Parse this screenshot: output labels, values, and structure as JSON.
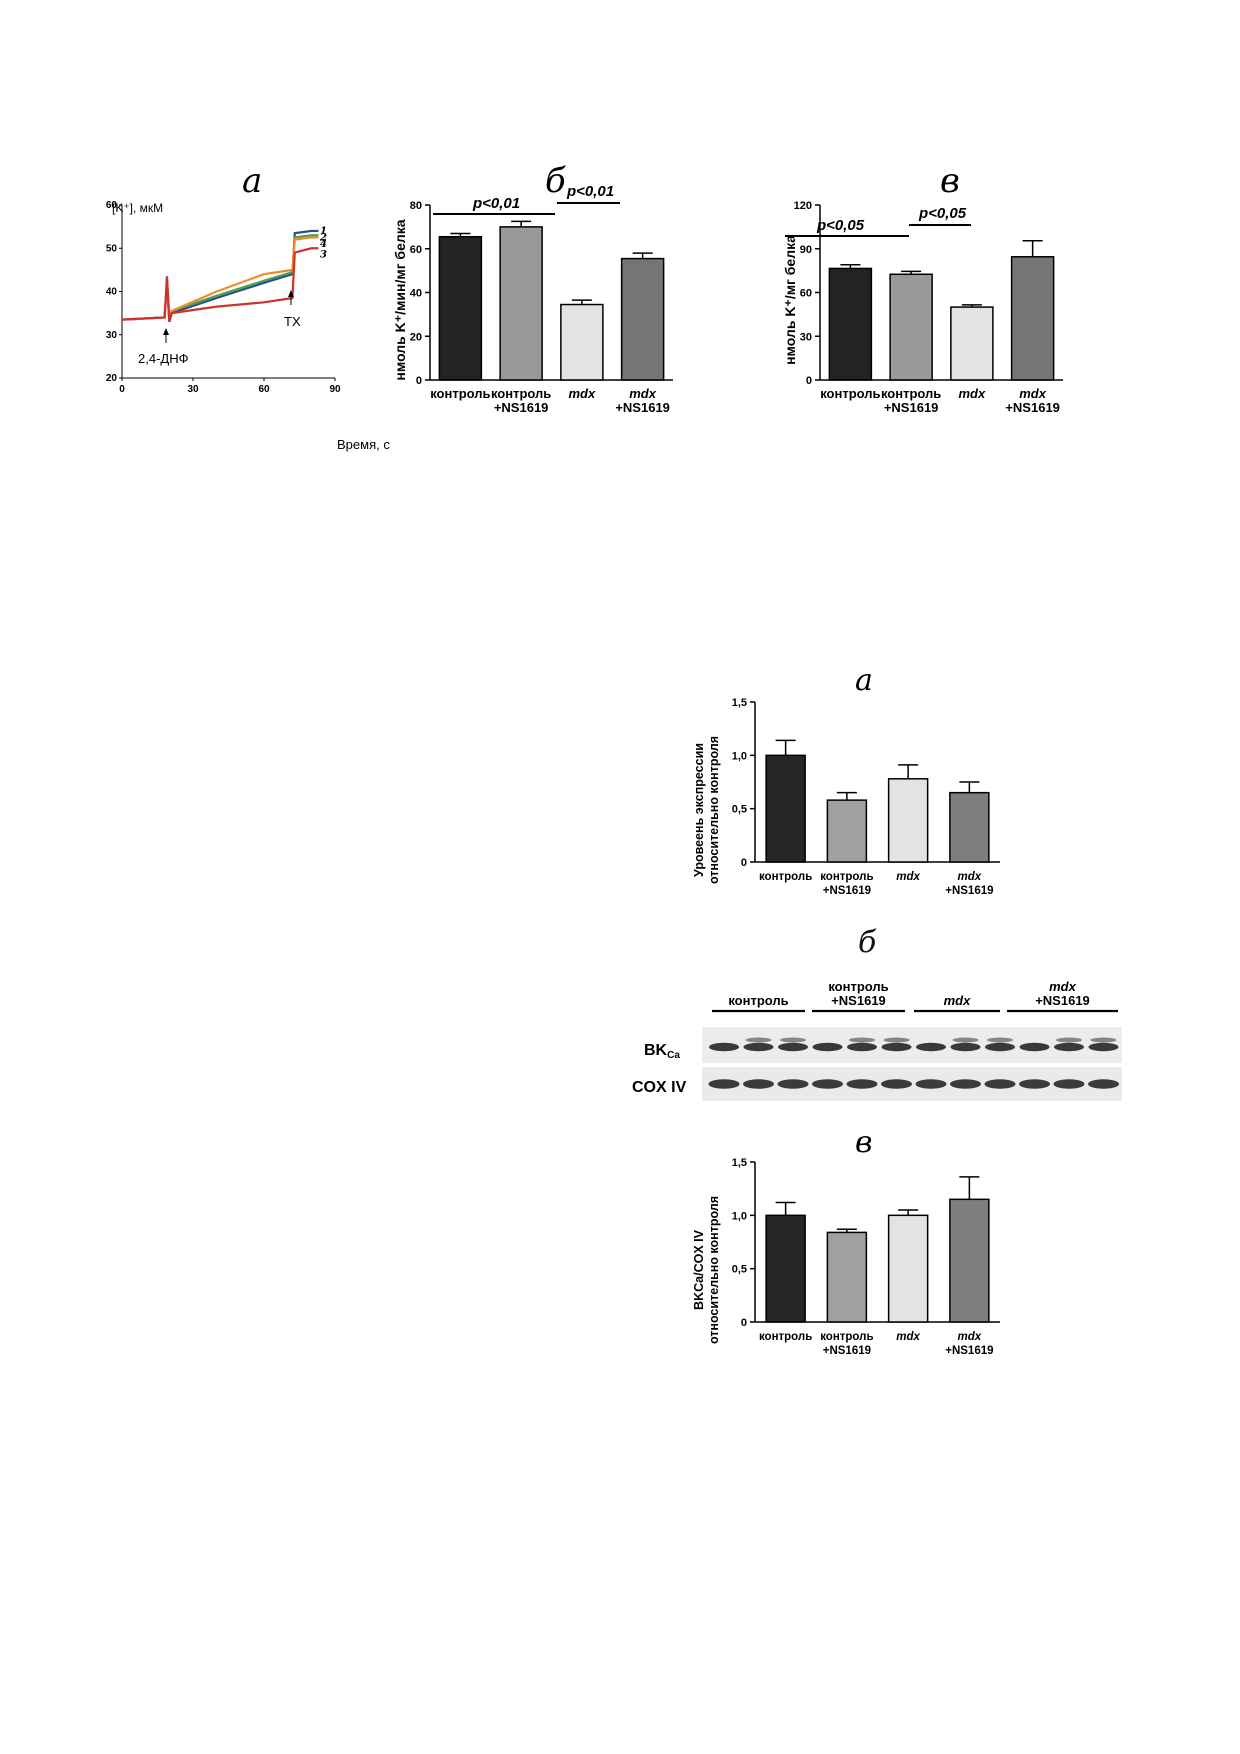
{
  "figure1": {
    "panel_a": {
      "letter": "а",
      "y_label": "[K⁺], мкМ",
      "x_label": "Время, с",
      "annotation_left": "2,4-ДНФ",
      "annotation_right": "TX",
      "series_labels": [
        "1",
        "2",
        "4",
        "3"
      ],
      "colors": {
        "1": "#2a4d8f",
        "2": "#4ea34a",
        "3": "#d0312d",
        "4": "#f08c2c"
      }
    },
    "panel_b": {
      "letter": "б",
      "y_label": "нмоль K⁺/мин/мг белка",
      "sig_1": "p<0,01",
      "sig_2": "p<0,01",
      "categories": [
        [
          "контроль"
        ],
        [
          "контроль",
          "+NS1619"
        ],
        [
          "mdx"
        ],
        [
          "mdx",
          "+NS1619"
        ]
      ]
    },
    "panel_c": {
      "letter": "в",
      "y_label": "нмоль K⁺/мг белка",
      "sig_1": "p<0,05",
      "sig_2": "p<0,05",
      "categories": [
        [
          "контроль"
        ],
        [
          "контроль",
          "+NS1619"
        ],
        [
          "mdx"
        ],
        [
          "mdx",
          "+NS1619"
        ]
      ]
    }
  },
  "figure2": {
    "panel_a": {
      "letter": "а",
      "y_label_line1": "Уровеень экспрессии",
      "y_label_line2": "относительно контроля",
      "categories": [
        [
          "контроль"
        ],
        [
          "контроль",
          "+NS1619"
        ],
        [
          "mdx"
        ],
        [
          "mdx",
          "+NS1619"
        ]
      ]
    },
    "panel_b": {
      "letter": "б",
      "lane_groups": [
        [
          "контроль"
        ],
        [
          "контроль",
          "+NS1619"
        ],
        [
          "mdx"
        ],
        [
          "mdx",
          "+NS1619"
        ]
      ],
      "protein_1": "BK",
      "protein_1_sub": "Ca",
      "protein_2": "COX IV"
    },
    "panel_c": {
      "letter": "в",
      "y_label_line1": "BKCa/COX IV",
      "y_label_line2": "относительно контроля",
      "categories": [
        [
          "контроль"
        ],
        [
          "контроль",
          "+NS1619"
        ],
        [
          "mdx"
        ],
        [
          "mdx",
          "+NS1619"
        ]
      ]
    }
  },
  "chart_data": [
    {
      "id": "fig1a",
      "type": "line",
      "xlabel": "Время, с",
      "ylabel": "[K⁺], мкМ",
      "xlim": [
        0,
        90
      ],
      "ylim": [
        20,
        60
      ],
      "xticks": [
        0,
        30,
        60,
        90
      ],
      "yticks": [
        20,
        30,
        40,
        50,
        60
      ],
      "series": [
        {
          "name": "1",
          "color": "#2a4d8f",
          "x": [
            0,
            18,
            19,
            20,
            21,
            40,
            60,
            72,
            73,
            80,
            83
          ],
          "y": [
            33.5,
            34,
            42,
            33,
            35,
            38.5,
            42,
            44,
            53.5,
            54,
            54
          ]
        },
        {
          "name": "2",
          "color": "#4ea34a",
          "x": [
            0,
            18,
            19,
            20,
            21,
            40,
            60,
            72,
            73,
            80,
            83
          ],
          "y": [
            33.5,
            34,
            43,
            33,
            35.5,
            39,
            42.5,
            44.5,
            52.5,
            53,
            53
          ]
        },
        {
          "name": "4",
          "color": "#f08c2c",
          "x": [
            0,
            18,
            19,
            20,
            21,
            40,
            60,
            72,
            73,
            80,
            83
          ],
          "y": [
            33.5,
            34,
            42.5,
            33.5,
            35.5,
            40,
            44,
            45,
            52,
            52.5,
            52.5
          ]
        },
        {
          "name": "3",
          "color": "#d0312d",
          "x": [
            0,
            18,
            19,
            20,
            21,
            40,
            60,
            72,
            73,
            80,
            83
          ],
          "y": [
            33.5,
            34,
            43.5,
            33,
            35,
            36.5,
            37.5,
            38.5,
            49,
            50,
            50
          ]
        }
      ]
    },
    {
      "id": "fig1b",
      "type": "bar",
      "ylabel": "нмоль K⁺/мин/мг белка",
      "ylim": [
        0,
        80
      ],
      "yticks": [
        0,
        20,
        40,
        60,
        80
      ],
      "categories": [
        "контроль",
        "контроль +NS1619",
        "mdx",
        "mdx +NS1619"
      ],
      "values": [
        65.5,
        70,
        34.5,
        55.5
      ],
      "errors": [
        1.5,
        2.5,
        2,
        2.5
      ],
      "bar_colors": [
        "#232323",
        "#999999",
        "#e3e3e3",
        "#757575"
      ]
    },
    {
      "id": "fig1c",
      "type": "bar",
      "ylabel": "нмоль K⁺/мг белка",
      "ylim": [
        0,
        120
      ],
      "yticks": [
        0,
        30,
        60,
        90,
        120
      ],
      "categories": [
        "контроль",
        "контроль +NS1619",
        "mdx",
        "mdx +NS1619"
      ],
      "values": [
        76.5,
        72.5,
        50,
        84.5
      ],
      "errors": [
        2.5,
        2,
        1.5,
        11
      ],
      "bar_colors": [
        "#232323",
        "#999999",
        "#e3e3e3",
        "#757575"
      ]
    },
    {
      "id": "fig2a",
      "type": "bar",
      "ylabel": "Уровеень экспрессии относительно контроля",
      "ylim": [
        0,
        1.5
      ],
      "yticks": [
        "0",
        "0,5",
        "1,0",
        "1,5"
      ],
      "categories": [
        "контроль",
        "контроль +NS1619",
        "mdx",
        "mdx +NS1619"
      ],
      "values": [
        1.0,
        0.58,
        0.78,
        0.65
      ],
      "errors": [
        0.14,
        0.07,
        0.13,
        0.1
      ],
      "bar_colors": [
        "#262626",
        "#a0a0a0",
        "#e3e3e3",
        "#7e7e7e"
      ]
    },
    {
      "id": "fig2c",
      "type": "bar",
      "ylabel": "BKCa/COX IV относительно контроля",
      "ylim": [
        0,
        1.5
      ],
      "yticks": [
        "0",
        "0,5",
        "1,0",
        "1,5"
      ],
      "categories": [
        "контроль",
        "контроль +NS1619",
        "mdx",
        "mdx +NS1619"
      ],
      "values": [
        1.0,
        0.84,
        1.0,
        1.15
      ],
      "errors": [
        0.12,
        0.03,
        0.05,
        0.21
      ],
      "bar_colors": [
        "#262626",
        "#a0a0a0",
        "#e3e3e3",
        "#7e7e7e"
      ]
    }
  ]
}
